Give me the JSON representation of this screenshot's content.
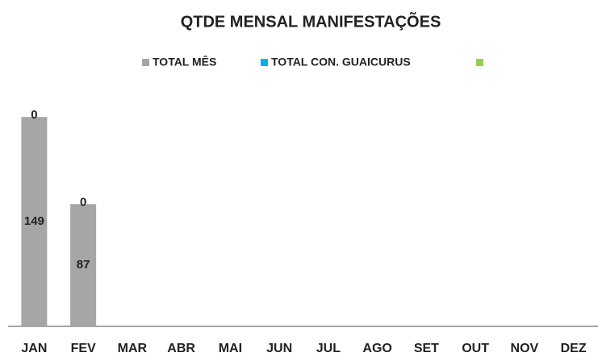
{
  "chart_data": {
    "type": "bar",
    "stacked": true,
    "title": "QTDE MENSAL MANIFESTAÇÕES",
    "categories": [
      "JAN",
      "FEV",
      "MAR",
      "ABR",
      "MAI",
      "JUN",
      "JUL",
      "AGO",
      "SET",
      "OUT",
      "NOV",
      "DEZ"
    ],
    "series": [
      {
        "name": "TOTAL MÊS",
        "color": "#a6a6a6",
        "values": [
          149,
          87,
          null,
          null,
          null,
          null,
          null,
          null,
          null,
          null,
          null,
          null
        ]
      },
      {
        "name": "TOTAL CON. GUAICURUS",
        "color": "#00b0f0",
        "values": [
          0,
          0,
          null,
          null,
          null,
          null,
          null,
          null,
          null,
          null,
          null,
          null
        ]
      },
      {
        "color": "#92d050",
        "values": [
          null,
          null,
          null,
          null,
          null,
          null,
          null,
          null,
          null,
          null,
          null,
          null
        ]
      }
    ],
    "ylim": [
      0,
      160
    ],
    "legend": "top"
  }
}
